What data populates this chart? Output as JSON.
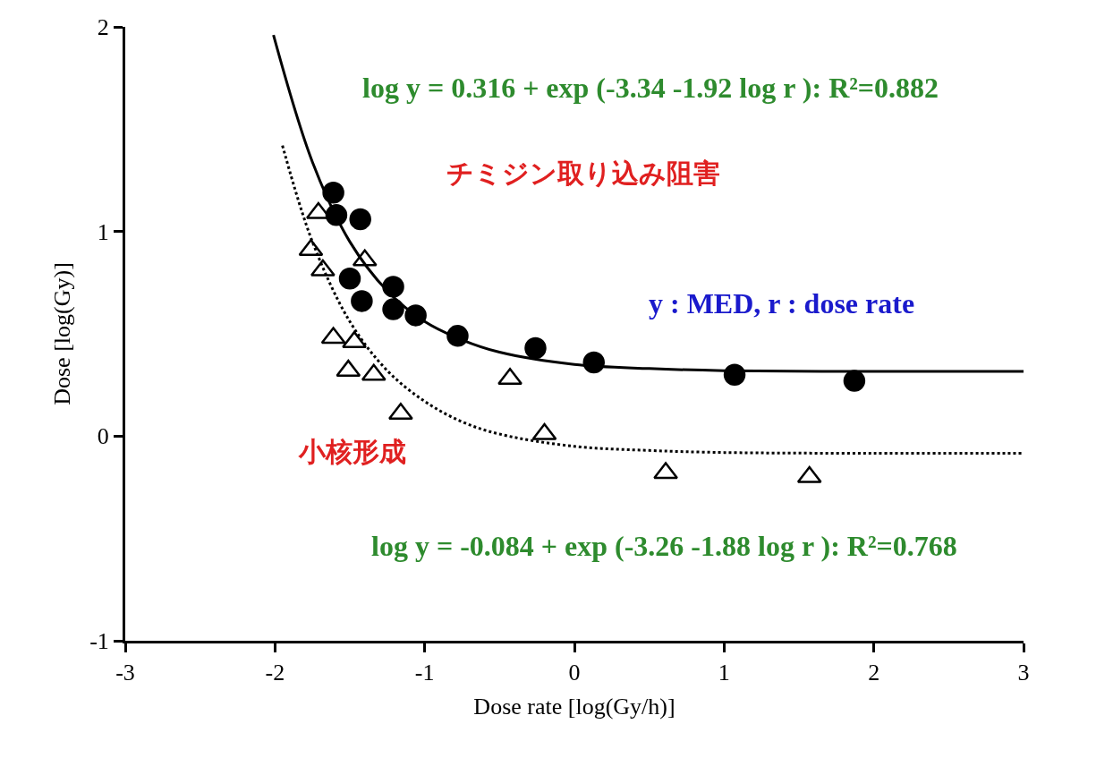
{
  "chart_data": {
    "type": "scatter",
    "xlabel": "Dose rate [log(Gy/h)]",
    "ylabel": "Dose [log(Gy)]",
    "xlim": [
      -3,
      3
    ],
    "xticks": [
      -3,
      -2,
      -1,
      0,
      1,
      2,
      3
    ],
    "ylim": [
      -1,
      2
    ],
    "yticks": [
      -1,
      0,
      1,
      2
    ],
    "series": [
      {
        "marker": "circle",
        "color": "#000000",
        "x": [
          -1.61,
          -1.59,
          -1.43,
          -1.5,
          -1.42,
          -1.21,
          -1.21,
          -1.06,
          -0.78,
          -0.26,
          0.13,
          1.07,
          1.87
        ],
        "values": [
          1.19,
          1.08,
          1.06,
          0.77,
          0.66,
          0.73,
          0.62,
          0.59,
          0.49,
          0.43,
          0.36,
          0.3,
          0.27
        ]
      },
      {
        "marker": "triangle",
        "color": "#000000",
        "x": [
          -1.71,
          -1.76,
          -1.68,
          -1.4,
          -1.61,
          -1.47,
          -1.51,
          -1.34,
          -1.16,
          -0.43,
          -0.2,
          0.61,
          1.57
        ],
        "values": [
          1.09,
          0.91,
          0.81,
          0.86,
          0.48,
          0.46,
          0.32,
          0.3,
          0.11,
          0.28,
          0.01,
          -0.18,
          -0.2
        ]
      },
      {
        "type": "line",
        "line_style": "solid",
        "color": "#000000",
        "x": [
          -2.01,
          -1.75,
          -1.5,
          -1.25,
          -1,
          -0.75,
          -0.5,
          0,
          0.5,
          1,
          2,
          3
        ],
        "values": [
          1.96,
          1.34,
          0.95,
          0.71,
          0.56,
          0.47,
          0.41,
          0.35,
          0.33,
          0.32,
          0.316,
          0.316
        ]
      },
      {
        "type": "line",
        "line_style": "dotted",
        "color": "#000000",
        "x": [
          -1.95,
          -1.75,
          -1.5,
          -1.25,
          -1,
          -0.75,
          -0.5,
          0,
          0.5,
          1,
          2,
          3
        ],
        "values": [
          1.42,
          0.95,
          0.56,
          0.32,
          0.17,
          0.07,
          0.01,
          -0.05,
          -0.07,
          -0.08,
          -0.084,
          -0.084
        ]
      }
    ],
    "annotations": [
      "log y = 0.316 + exp (-3.34 -1.92 log r ): R²=0.882",
      "チミジン取り込み阻害",
      "y : MED, r : dose rate",
      "小核形成",
      "log y = -0.084 + exp (-3.26 -1.88 log r ): R²=0.768"
    ]
  }
}
